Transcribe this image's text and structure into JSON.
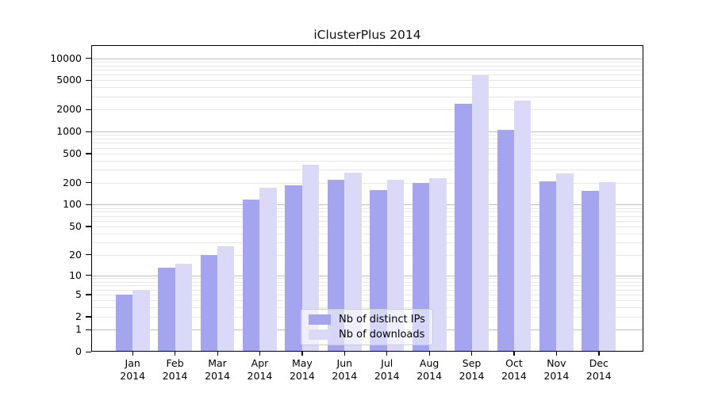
{
  "title": "iClusterPlus 2014",
  "chart_data": {
    "type": "bar",
    "title": "iClusterPlus 2014",
    "categories": [
      "Jan",
      "Feb",
      "Mar",
      "Apr",
      "May",
      "Jun",
      "Jul",
      "Aug",
      "Sep",
      "Oct",
      "Nov",
      "Dec"
    ],
    "year": "2014",
    "series": [
      {
        "name": "Nb of distinct IPs",
        "color": "#a4a4ef",
        "values": [
          5,
          13,
          20,
          118,
          186,
          219,
          158,
          201,
          2400,
          1060,
          209,
          154
        ]
      },
      {
        "name": "Nb of downloads",
        "color": "#dadaf8",
        "values": [
          6,
          15,
          26,
          171,
          349,
          276,
          222,
          233,
          5850,
          2670,
          268,
          202
        ]
      }
    ],
    "xlabel": "",
    "ylabel": "",
    "yscale": "log10(value+1)",
    "yticks": [
      0,
      1,
      2,
      5,
      10,
      20,
      50,
      100,
      200,
      500,
      1000,
      2000,
      5000,
      10000
    ],
    "ylim": [
      0,
      15000
    ],
    "grid": {
      "enabled": true,
      "major_color": "#bdbdbd",
      "minor_color": "#e7e7e7"
    },
    "legend_position": "lower-center"
  },
  "colors": {
    "background": "#ffffff",
    "frame": "#000000",
    "text": "#000000",
    "bar_ips": "#a4a4ef",
    "bar_downloads": "#dadaf8",
    "legend_border": "#cccccc"
  }
}
